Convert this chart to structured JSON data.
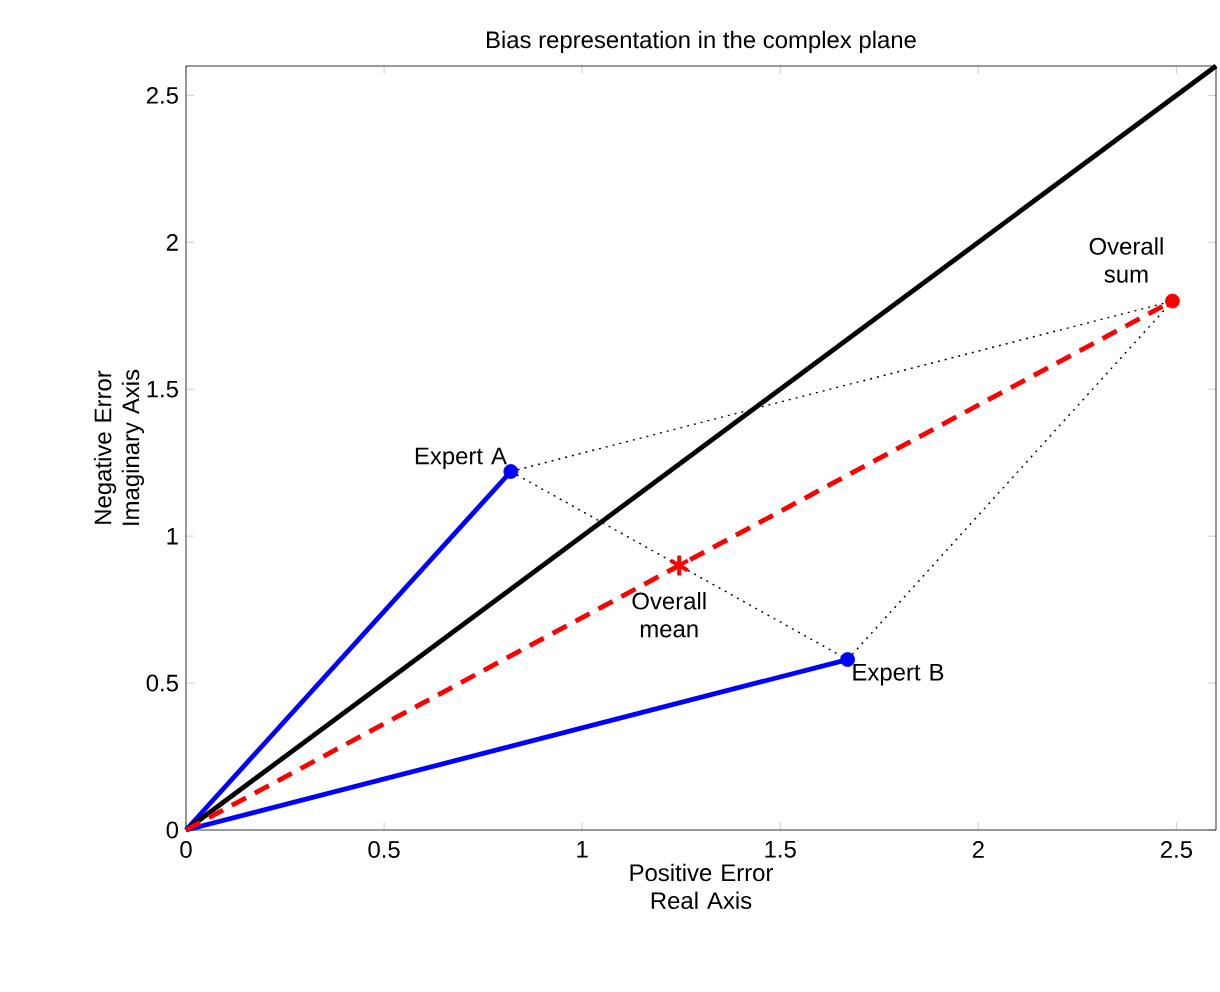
{
  "chart_data": {
    "type": "line",
    "title": "Bias representation in the complex plane",
    "xlabel": "Positive Error Real Axis",
    "ylabel": "Negative Error Imaginary Axis",
    "xlim": [
      0,
      2.6
    ],
    "ylim": [
      0,
      2.6
    ],
    "xticks": [
      0,
      0.5,
      1,
      1.5,
      2,
      2.5
    ],
    "yticks": [
      0,
      0.5,
      1,
      1.5,
      2,
      2.5
    ],
    "series": [
      {
        "color": "#000000",
        "line_style": "dotted",
        "marker": "none",
        "x": [
          0.82,
          2.49
        ],
        "values": [
          1.22,
          1.8
        ]
      },
      {
        "color": "#000000",
        "line_style": "dotted",
        "marker": "none",
        "x": [
          1.67,
          2.49
        ],
        "values": [
          0.58,
          1.8
        ]
      },
      {
        "color": "#000000",
        "line_style": "dotted",
        "marker": "none",
        "x": [
          0.82,
          1.67
        ],
        "values": [
          1.22,
          0.58
        ]
      },
      {
        "color": "#0000ff",
        "line_style": "solid",
        "marker": "none",
        "x": [
          0,
          0.82
        ],
        "values": [
          0,
          1.22
        ]
      },
      {
        "color": "#0000ff",
        "line_style": "solid",
        "marker": "none",
        "x": [
          0,
          1.67
        ],
        "values": [
          0,
          0.58
        ]
      },
      {
        "color": "#000000",
        "line_style": "solid",
        "marker": "none",
        "x": [
          0,
          2.6
        ],
        "values": [
          0,
          2.6
        ]
      },
      {
        "color": "#ff0000",
        "line_style": "dashed",
        "marker": "none",
        "x": [
          0,
          2.49
        ],
        "values": [
          0,
          1.8
        ]
      },
      {
        "type": "scatter",
        "color": "#0000ff",
        "marker": "circle",
        "x": [
          0.82,
          1.67
        ],
        "values": [
          1.22,
          0.58
        ]
      },
      {
        "type": "scatter",
        "color": "#ff0000",
        "marker": "cross",
        "x": [
          1.245
        ],
        "values": [
          0.9
        ]
      },
      {
        "type": "scatter",
        "color": "#ff0000",
        "marker": "circle",
        "x": [
          2.49
        ],
        "values": [
          1.8
        ]
      }
    ],
    "annotations": [
      {
        "text": "Expert A",
        "x": 0.82,
        "y": 1.22
      },
      {
        "text": "Expert B",
        "x": 1.67,
        "y": 0.58
      },
      {
        "text": "Overall mean",
        "x": 1.245,
        "y": 0.9
      },
      {
        "text": "Overall sum",
        "x": 2.49,
        "y": 1.8
      }
    ]
  }
}
